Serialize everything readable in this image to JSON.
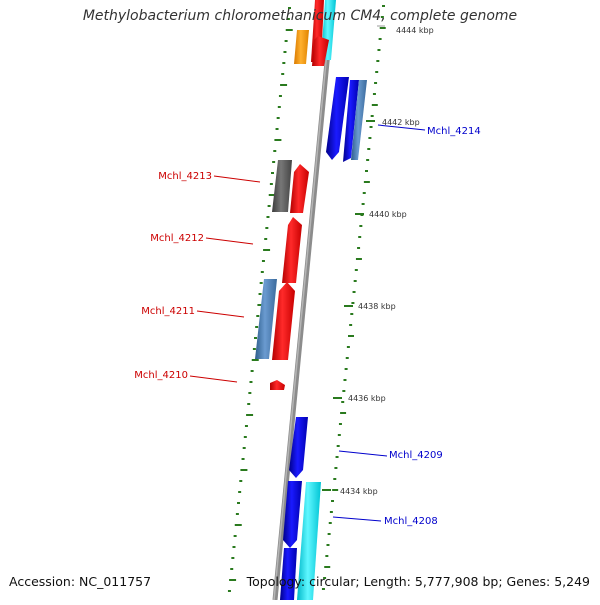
{
  "title": "Methylobacterium chloromethanicum CM4, complete genome",
  "accession_text": "Accession: NC_011757",
  "summary_text": "Topology: circular; Length: 5,777,908 bp; Genes: 5,249",
  "colors": {
    "backbone": "#8c8c8c",
    "gc_tick": "#2a7a1e",
    "label_left": "#cc0000",
    "label_right": "#0000cc",
    "gene_red": "#ff0000",
    "gene_blue": "#0000ee",
    "gene_steel": "#4a7fb5",
    "gene_cyan": "#22e5f0",
    "gene_orange": "#ff9900",
    "gene_gray": "#5a5a5a"
  },
  "scale_labels": [
    "4444 kbp",
    "4442 kbp",
    "4440 kbp",
    "4438 kbp",
    "4436 kbp",
    "4434 kbp"
  ],
  "gene_labels": [
    {
      "text": "Mchl_4214",
      "side": "right"
    },
    {
      "text": "Mchl_4213",
      "side": "left"
    },
    {
      "text": "Mchl_4212",
      "side": "left"
    },
    {
      "text": "Mchl_4211",
      "side": "left"
    },
    {
      "text": "Mchl_4210",
      "side": "left"
    },
    {
      "text": "Mchl_4209",
      "side": "right"
    },
    {
      "text": "Mchl_4208",
      "side": "right"
    }
  ]
}
